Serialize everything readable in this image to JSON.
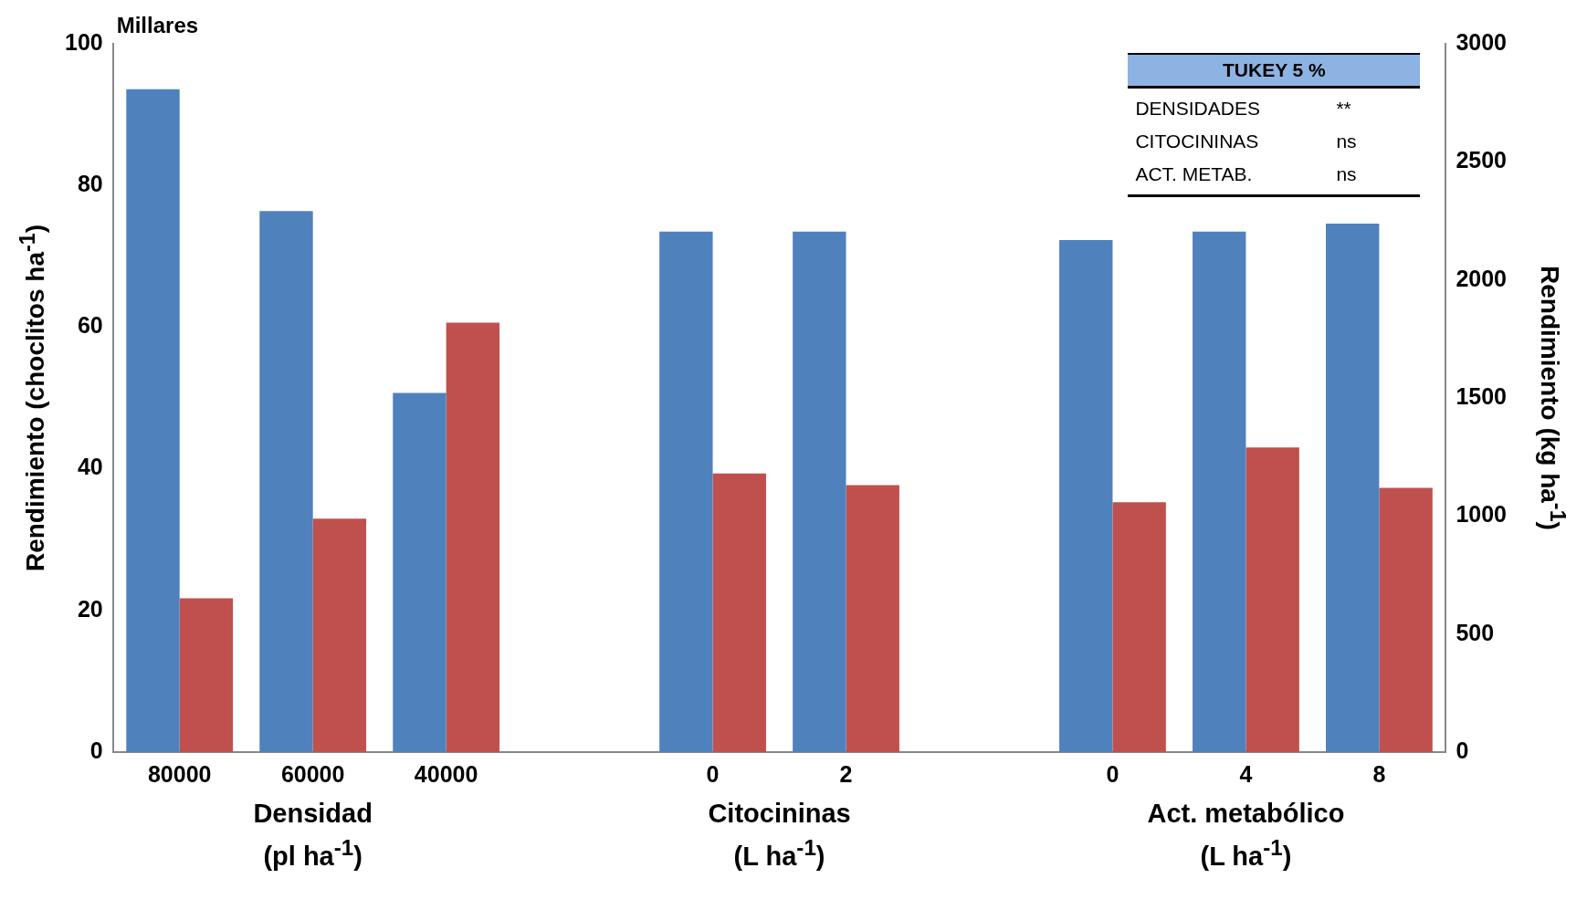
{
  "chart_data": {
    "type": "bar",
    "categories": [
      "80000",
      "60000",
      "40000",
      null,
      "0",
      "2",
      null,
      "0",
      "4",
      "8"
    ],
    "series": [
      {
        "color": "#4f81bd",
        "values": [
          93.6,
          76.4,
          50.7,
          null,
          73.5,
          73.5,
          null,
          72.3,
          73.5,
          74.6
        ]
      },
      {
        "color": "#c0504d",
        "axis": "y2",
        "values": [
          651,
          989,
          1819,
          null,
          1180,
          1131,
          null,
          1058,
          1290,
          1119
        ]
      }
    ],
    "ylabel": "Rendimiento (choclitos ha$^{-1}$)",
    "y2label": "Rendimiento (kg ha$^{-1}$)",
    "ylim": [
      0,
      100
    ],
    "yticks": [
      0,
      20,
      40,
      60,
      80,
      100
    ],
    "y2lim": [
      0,
      3000
    ],
    "y2ticks": [
      0,
      500,
      1000,
      1500,
      2000,
      2500,
      3000
    ],
    "annotations": [
      "Millares",
      "Densidad (pl ha$^{-1}$)",
      "Citocininas (L ha$^{-1}$)",
      "Act. metabólico (L ha$^{-1}$)",
      "TUKEY  5 %",
      "DENSIDADES",
      "**",
      "CITOCININAS",
      "ns",
      "ACT. METAB.",
      "ns"
    ]
  }
}
